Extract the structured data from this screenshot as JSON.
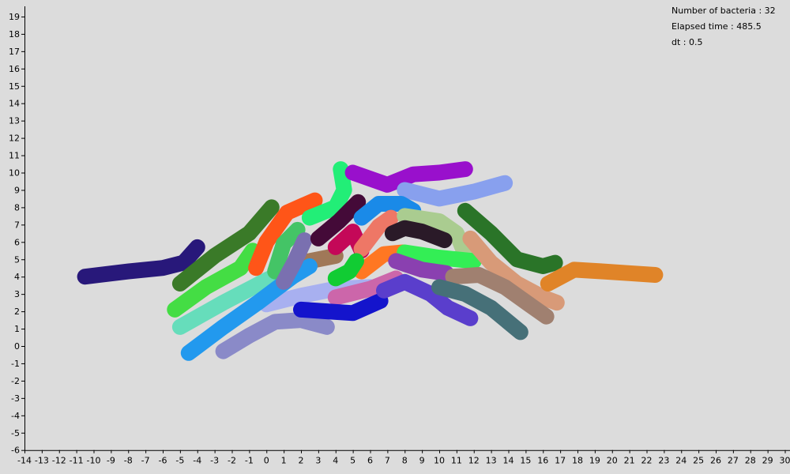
{
  "info": {
    "count": "Number of bacteria : 32",
    "elapsed": "Elapsed time : 485.5",
    "dt": "dt : 0.5"
  },
  "chart_data": {
    "type": "scatter",
    "title": "",
    "xlabel": "",
    "ylabel": "",
    "xlim": [
      -14,
      30
    ],
    "ylim": [
      -6,
      19
    ],
    "xticks": [
      -14,
      -13,
      -12,
      -11,
      -10,
      -9,
      -8,
      -7,
      -6,
      -5,
      -4,
      -3,
      -2,
      -1,
      0,
      1,
      2,
      3,
      4,
      5,
      6,
      7,
      8,
      9,
      10,
      11,
      12,
      13,
      14,
      15,
      16,
      17,
      18,
      19,
      20,
      21,
      22,
      23,
      24,
      25,
      26,
      27,
      28,
      29,
      30
    ],
    "yticks": [
      -6,
      -5,
      -4,
      -3,
      -2,
      -1,
      0,
      1,
      2,
      3,
      4,
      5,
      6,
      7,
      8,
      9,
      10,
      11,
      12,
      13,
      14,
      15,
      16,
      17,
      18,
      19
    ],
    "grid": false,
    "series": [
      {
        "color": "#8a8ac8",
        "points": [
          [
            -2.5,
            -0.3
          ],
          [
            -1,
            0.6
          ],
          [
            0.5,
            1.4
          ],
          [
            2,
            1.5
          ],
          [
            3.5,
            1.1
          ]
        ]
      },
      {
        "color": "#a8b0f0",
        "points": [
          [
            0,
            2.4
          ],
          [
            2,
            2.9
          ],
          [
            4,
            3.3
          ],
          [
            6,
            3.4
          ]
        ]
      },
      {
        "color": "#a07858",
        "points": [
          [
            0.5,
            3.8
          ],
          [
            2,
            4.8
          ],
          [
            4,
            5.2
          ]
        ]
      },
      {
        "color": "#28187a",
        "points": [
          [
            -10.5,
            4.0
          ],
          [
            -8,
            4.3
          ],
          [
            -6,
            4.5
          ],
          [
            -4.8,
            4.8
          ],
          [
            -4,
            5.7
          ]
        ]
      },
      {
        "color": "#3a7a28",
        "points": [
          [
            -5,
            3.6
          ],
          [
            -3,
            5.2
          ],
          [
            -1,
            6.5
          ],
          [
            0.3,
            8.0
          ]
        ]
      },
      {
        "color": "#44dd44",
        "points": [
          [
            -5.3,
            2.1
          ],
          [
            -3.5,
            3.4
          ],
          [
            -1.5,
            4.5
          ],
          [
            -0.8,
            5.5
          ]
        ]
      },
      {
        "color": "#66ddbb",
        "points": [
          [
            -5,
            1.1
          ],
          [
            -2.5,
            2.5
          ],
          [
            0,
            3.8
          ],
          [
            1.5,
            4.5
          ]
        ]
      },
      {
        "color": "#2299ee",
        "points": [
          [
            -4.5,
            -0.4
          ],
          [
            -2.5,
            1.1
          ],
          [
            -0.5,
            2.5
          ],
          [
            1.5,
            4.0
          ],
          [
            2.5,
            4.6
          ]
        ]
      },
      {
        "color": "#ff5518",
        "points": [
          [
            -0.6,
            4.5
          ],
          [
            0,
            6
          ],
          [
            1.2,
            7.7
          ],
          [
            2.8,
            8.4
          ]
        ]
      },
      {
        "color": "#44c466",
        "points": [
          [
            0.5,
            4.3
          ],
          [
            1,
            5.9
          ],
          [
            1.8,
            6.7
          ]
        ]
      },
      {
        "color": "#7a70b0",
        "points": [
          [
            1,
            3.7
          ],
          [
            1.6,
            4.8
          ],
          [
            2.2,
            6.1
          ]
        ]
      },
      {
        "color": "#22ee77",
        "points": [
          [
            2.5,
            7.4
          ],
          [
            4,
            8
          ],
          [
            4.5,
            9
          ],
          [
            4.3,
            10.2
          ]
        ]
      },
      {
        "color": "#440a38",
        "points": [
          [
            3,
            6.2
          ],
          [
            4.2,
            7.2
          ],
          [
            5.3,
            8.3
          ]
        ]
      },
      {
        "color": "#9910cc",
        "points": [
          [
            5,
            10
          ],
          [
            7,
            9.3
          ],
          [
            8.5,
            9.9
          ],
          [
            10,
            10
          ],
          [
            11.5,
            10.2
          ]
        ]
      },
      {
        "color": "#88a0ee",
        "points": [
          [
            8,
            9
          ],
          [
            10,
            8.5
          ],
          [
            12,
            8.9
          ],
          [
            13.8,
            9.4
          ]
        ]
      },
      {
        "color": "#1a8ae8",
        "points": [
          [
            5.5,
            7.4
          ],
          [
            6.5,
            8.2
          ],
          [
            7.8,
            8.2
          ],
          [
            8.5,
            7.8
          ]
        ]
      },
      {
        "color": "#c40858",
        "points": [
          [
            4,
            5.7
          ],
          [
            5,
            6.6
          ],
          [
            5.5,
            5.5
          ]
        ]
      },
      {
        "color": "#ee7766",
        "points": [
          [
            5.5,
            5.6
          ],
          [
            6.5,
            6.9
          ],
          [
            7.2,
            7.4
          ]
        ]
      },
      {
        "color": "#ff7722",
        "points": [
          [
            5.5,
            4.3
          ],
          [
            6.8,
            5.3
          ],
          [
            7.9,
            5.4
          ]
        ]
      },
      {
        "color": "#aacc90",
        "points": [
          [
            8,
            7.5
          ],
          [
            10,
            7.2
          ],
          [
            11,
            6.5
          ],
          [
            11.5,
            5.3
          ]
        ]
      },
      {
        "color": "#2a1a28",
        "points": [
          [
            7.3,
            6.5
          ],
          [
            8,
            6.8
          ],
          [
            9,
            6.6
          ],
          [
            10.3,
            6.1
          ]
        ]
      },
      {
        "color": "#33ee55",
        "points": [
          [
            8,
            5.4
          ],
          [
            10,
            5.1
          ],
          [
            12,
            4.9
          ]
        ]
      },
      {
        "color": "#cc66aa",
        "points": [
          [
            4,
            2.8
          ],
          [
            6,
            3.3
          ],
          [
            7.5,
            3.9
          ]
        ]
      },
      {
        "color": "#11cc33",
        "points": [
          [
            4,
            3.9
          ],
          [
            4.8,
            4.3
          ],
          [
            5.2,
            4.9
          ]
        ]
      },
      {
        "color": "#8a40b0",
        "points": [
          [
            7.5,
            4.9
          ],
          [
            9,
            4.4
          ],
          [
            10.4,
            4.2
          ]
        ]
      },
      {
        "color": "#1414cc",
        "points": [
          [
            2,
            2.1
          ],
          [
            3.5,
            2.0
          ],
          [
            5,
            1.9
          ],
          [
            6.6,
            2.6
          ]
        ]
      },
      {
        "color": "#5a3ecc",
        "points": [
          [
            6.8,
            3.2
          ],
          [
            8,
            3.7
          ],
          [
            9.5,
            3.0
          ],
          [
            10.5,
            2.2
          ],
          [
            11.8,
            1.6
          ]
        ]
      },
      {
        "color": "#2a7428",
        "points": [
          [
            11.5,
            7.8
          ],
          [
            13,
            6.5
          ],
          [
            14.5,
            5.0
          ],
          [
            16,
            4.6
          ],
          [
            16.7,
            4.8
          ]
        ]
      },
      {
        "color": "#d89a78",
        "points": [
          [
            11.8,
            6.2
          ],
          [
            13,
            4.8
          ],
          [
            14.5,
            3.6
          ],
          [
            16,
            2.8
          ],
          [
            16.8,
            2.5
          ]
        ]
      },
      {
        "color": "#a08070",
        "points": [
          [
            10.8,
            4.0
          ],
          [
            12.3,
            4.1
          ],
          [
            13.8,
            3.4
          ],
          [
            15.2,
            2.4
          ],
          [
            16.2,
            1.7
          ]
        ]
      },
      {
        "color": "#467078",
        "points": [
          [
            10,
            3.4
          ],
          [
            11.5,
            3.0
          ],
          [
            13,
            2.2
          ],
          [
            14.7,
            0.8
          ]
        ]
      },
      {
        "color": "#e08428",
        "points": [
          [
            16.3,
            3.6
          ],
          [
            17.8,
            4.4
          ],
          [
            19.5,
            4.3
          ],
          [
            21,
            4.2
          ],
          [
            22.5,
            4.1
          ]
        ]
      }
    ]
  }
}
